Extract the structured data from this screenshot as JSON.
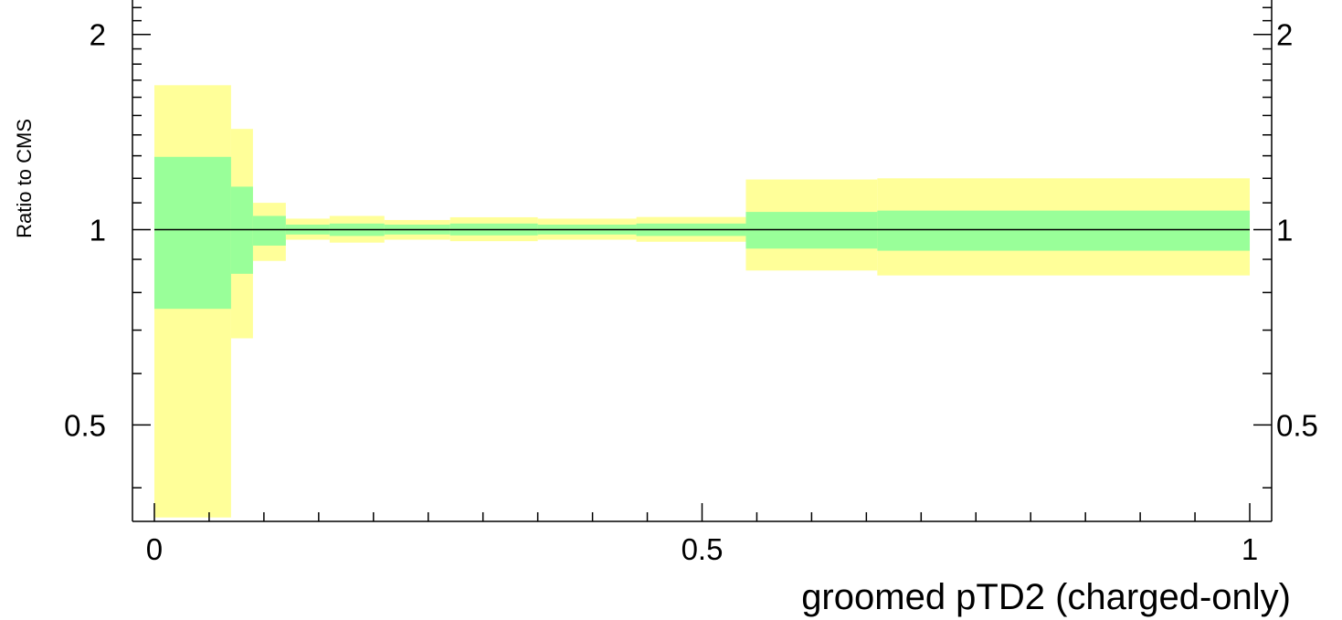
{
  "chart_data": {
    "type": "area",
    "title": "",
    "xlabel": "groomed pTD2 (charged-only)",
    "ylabel": "Ratio to CMS",
    "xlim": [
      -0.02,
      1.02
    ],
    "ylim": [
      0.355,
      2.26
    ],
    "y_scale": "log",
    "x_tick_labels": [
      "0",
      "0.5",
      "1"
    ],
    "y_tick_labels": [
      "0.5",
      "1",
      "2"
    ],
    "reference_line": 1,
    "series": [
      {
        "color": "#ffff99",
        "bins": [
          {
            "x0": 0.0,
            "x1": 0.07,
            "lo": 0.36,
            "hi": 1.67
          },
          {
            "x0": 0.07,
            "x1": 0.09,
            "lo": 0.68,
            "hi": 1.43
          },
          {
            "x0": 0.09,
            "x1": 0.12,
            "lo": 0.895,
            "hi": 1.1
          },
          {
            "x0": 0.12,
            "x1": 0.16,
            "lo": 0.965,
            "hi": 1.04
          },
          {
            "x0": 0.16,
            "x1": 0.21,
            "lo": 0.955,
            "hi": 1.05
          },
          {
            "x0": 0.21,
            "x1": 0.27,
            "lo": 0.965,
            "hi": 1.035
          },
          {
            "x0": 0.27,
            "x1": 0.35,
            "lo": 0.96,
            "hi": 1.045
          },
          {
            "x0": 0.35,
            "x1": 0.44,
            "lo": 0.965,
            "hi": 1.04
          },
          {
            "x0": 0.44,
            "x1": 0.54,
            "lo": 0.958,
            "hi": 1.046
          },
          {
            "x0": 0.54,
            "x1": 0.66,
            "lo": 0.865,
            "hi": 1.195
          },
          {
            "x0": 0.66,
            "x1": 1.0,
            "lo": 0.85,
            "hi": 1.2
          }
        ]
      },
      {
        "color": "#99ff99",
        "bins": [
          {
            "x0": 0.0,
            "x1": 0.07,
            "lo": 0.755,
            "hi": 1.295
          },
          {
            "x0": 0.07,
            "x1": 0.09,
            "lo": 0.855,
            "hi": 1.165
          },
          {
            "x0": 0.09,
            "x1": 0.12,
            "lo": 0.945,
            "hi": 1.05
          },
          {
            "x0": 0.12,
            "x1": 0.16,
            "lo": 0.983,
            "hi": 1.018
          },
          {
            "x0": 0.16,
            "x1": 0.21,
            "lo": 0.978,
            "hi": 1.022
          },
          {
            "x0": 0.21,
            "x1": 0.27,
            "lo": 0.983,
            "hi": 1.018
          },
          {
            "x0": 0.27,
            "x1": 0.35,
            "lo": 0.98,
            "hi": 1.022
          },
          {
            "x0": 0.35,
            "x1": 0.44,
            "lo": 0.983,
            "hi": 1.018
          },
          {
            "x0": 0.44,
            "x1": 0.54,
            "lo": 0.978,
            "hi": 1.022
          },
          {
            "x0": 0.54,
            "x1": 0.66,
            "lo": 0.935,
            "hi": 1.065
          },
          {
            "x0": 0.66,
            "x1": 1.0,
            "lo": 0.928,
            "hi": 1.07
          }
        ]
      }
    ]
  }
}
